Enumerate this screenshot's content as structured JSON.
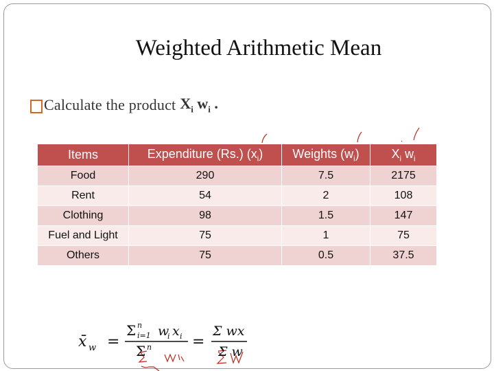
{
  "slide": {
    "title": "Weighted Arithmetic Mean",
    "bullet": {
      "icon": "square-bullet-icon",
      "text": "Calculate the product",
      "var_x": "X",
      "var_x_sub": "i",
      "var_w": "w",
      "var_w_sub": "i",
      "end": "."
    }
  },
  "table": {
    "headers": {
      "items": "Items",
      "expenditure": "Expenditure (Rs.) (x",
      "expenditure_sub": "i",
      "expenditure_end": ")",
      "weights": "Weights (w",
      "weights_sub": "i",
      "weights_end": ")",
      "product_x": "X",
      "product_x_sub": "i",
      "product_w": " w",
      "product_w_sub": "i"
    },
    "rows": [
      {
        "item": "Food",
        "expenditure": "290",
        "weight": "7.5",
        "product": "2175"
      },
      {
        "item": "Rent",
        "expenditure": "54",
        "weight": "2",
        "product": "108"
      },
      {
        "item": "Clothing",
        "expenditure": "98",
        "weight": "1.5",
        "product": "147"
      },
      {
        "item": "Fuel and Light",
        "expenditure": "75",
        "weight": "1",
        "product": "75"
      },
      {
        "item": "Others",
        "expenditure": "75",
        "weight": "0.5",
        "product": "37.5"
      }
    ]
  },
  "formula": {
    "lhs": "x̄",
    "lhs_sub": "w",
    "eq": "=",
    "sum1_num": "Σ",
    "sum1_num_sup": "n",
    "sum1_num_sub": "i=1",
    "sum1_num_terms": "w",
    "sum1_num_terms_sub": "i",
    "sum1_num_x": "x",
    "sum1_num_x_sub": "i",
    "sum1_den": "Σ",
    "sum1_den_sup": "n",
    "sum2_num": "Σ wx",
    "sum2_den": "Σ w"
  },
  "colors": {
    "header_bg": "#c0504d",
    "row_odd": "#efd3d2",
    "row_even": "#f8ebea",
    "ink": "#c0281e"
  }
}
